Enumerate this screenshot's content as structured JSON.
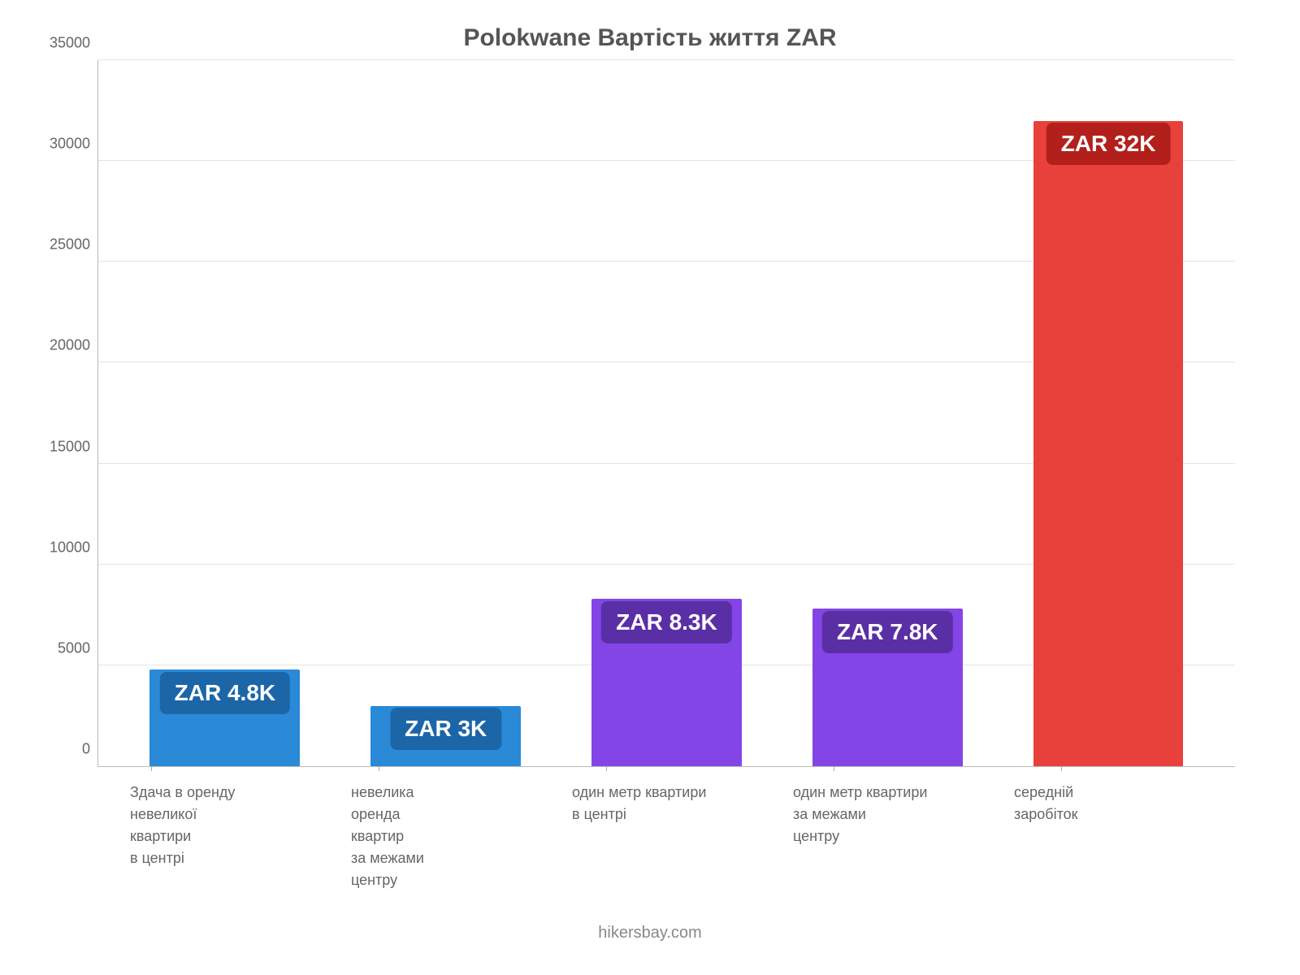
{
  "chart": {
    "type": "bar",
    "title": "Polokwane Вартість життя ZAR",
    "title_fontsize": 30,
    "title_color": "#555555",
    "background_color": "#ffffff",
    "grid_color": "#e5e5e5",
    "axis_color": "#bbbbbb",
    "label_font_color": "#666666",
    "label_fontsize": 18,
    "x_label_fontsize": 18,
    "ylim": [
      0,
      35000
    ],
    "ytick_step": 5000,
    "yticks": [
      0,
      5000,
      10000,
      15000,
      20000,
      25000,
      30000,
      35000
    ],
    "bar_width_pct": 68,
    "value_label_fontsize": 28,
    "value_label_radius": 8,
    "categories": [
      "Здача в оренду\nневеликої\nквартири\nв центрі",
      "невелика\nоренда\nквартир\nза межами\nцентру",
      "один метр квартири\nв центрі",
      "один метр квартири\nза межами\nцентру",
      "середній\nзаробіток"
    ],
    "values": [
      4800,
      3000,
      8300,
      7800,
      32000
    ],
    "value_labels": [
      "ZAR 4.8K",
      "ZAR 3K",
      "ZAR 8.3K",
      "ZAR 7.8K",
      "ZAR 32K"
    ],
    "bar_colors": [
      "#2a8ad8",
      "#2a8ad8",
      "#8345e6",
      "#8345e6",
      "#e8413b"
    ],
    "value_label_bg": [
      "#1c66a8",
      "#1c66a8",
      "#5a2fa5",
      "#5a2fa5",
      "#b3201b"
    ],
    "footer": "hikersbay.com",
    "footer_color": "#888888",
    "footer_fontsize": 20
  }
}
